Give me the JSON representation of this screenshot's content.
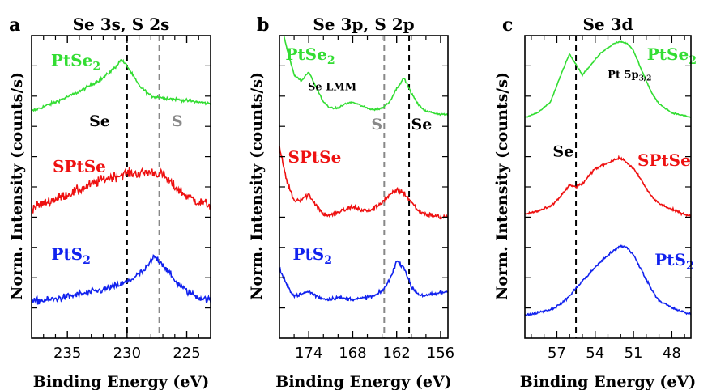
{
  "figure": {
    "ylabel": "Norm. Intensity (counts/s)",
    "xlabel": "Binding Energy (eV)"
  },
  "chart_data": [
    {
      "type": "line",
      "panel_letter": "a",
      "title": "Se 3s, S 2s",
      "xlabel": "Binding Energy (eV)",
      "ylabel": "Norm. Intensity (counts/s)",
      "xlim": [
        238,
        223
      ],
      "x_reversed": true,
      "xticks": [
        235,
        230,
        225
      ],
      "minor_xticks": [
        237,
        236,
        234,
        233,
        232,
        231,
        229,
        228,
        227,
        226,
        224
      ],
      "ylim": [
        0,
        10
      ],
      "y_minor_ticks": 9,
      "reference_lines": [
        {
          "x": 230.0,
          "label": "Se",
          "label_x": 232.3,
          "label_y": 7.0,
          "color": "#000000"
        },
        {
          "x": 227.3,
          "label": "S",
          "label_x": 225.8,
          "label_y": 7.0,
          "color": "#888888"
        }
      ],
      "series": [
        {
          "name": "PtSe₂",
          "name_base": "PtSe",
          "name_sub": "2",
          "color": "#33dd33",
          "label_x": 234.3,
          "label_y": 9.0,
          "noise": 0.05,
          "x": [
            238,
            236,
            234,
            232,
            231,
            230.5,
            230,
            229,
            228,
            227,
            226,
            225,
            224,
            223
          ],
          "y": [
            7.5,
            7.8,
            8.15,
            8.6,
            8.95,
            9.2,
            9.0,
            8.35,
            8.0,
            7.95,
            7.9,
            7.85,
            7.8,
            7.75
          ]
        },
        {
          "name": "SPtSe",
          "color": "#ee1111",
          "label_x": 234.0,
          "label_y": 5.5,
          "noise": 0.16,
          "x": [
            238,
            236,
            234,
            232,
            230,
            229,
            228,
            227,
            226,
            225,
            224,
            223
          ],
          "y": [
            4.3,
            4.6,
            4.9,
            5.25,
            5.45,
            5.45,
            5.5,
            5.4,
            5.0,
            4.7,
            4.5,
            4.4
          ]
        },
        {
          "name": "PtS₂",
          "name_base": "PtS",
          "name_sub": "2",
          "color": "#1122ee",
          "label_x": 234.7,
          "label_y": 2.6,
          "noise": 0.11,
          "x": [
            238,
            236,
            234,
            232,
            230,
            228.5,
            227.7,
            227,
            226,
            225,
            224,
            223
          ],
          "y": [
            1.2,
            1.3,
            1.45,
            1.6,
            1.85,
            2.25,
            2.7,
            2.45,
            1.9,
            1.55,
            1.35,
            1.25
          ]
        }
      ]
    },
    {
      "type": "line",
      "panel_letter": "b",
      "title": "Se 3p, S 2p",
      "xlabel": "Binding Energy (eV)",
      "ylabel": "Norm. Intensity (counts/s)",
      "xlim": [
        178,
        155
      ],
      "x_reversed": true,
      "xticks": [
        174,
        168,
        162,
        156
      ],
      "minor_xticks": [
        176,
        172,
        170,
        166,
        164,
        160,
        158
      ],
      "ylim": [
        0,
        10
      ],
      "y_minor_ticks": 9,
      "reference_lines": [
        {
          "x": 163.7,
          "label": "S",
          "label_x": 164.7,
          "label_y": 6.9,
          "color": "#888888"
        },
        {
          "x": 160.3,
          "label": "Se",
          "label_x": 158.6,
          "label_y": 6.9,
          "color": "#000000"
        }
      ],
      "annotations": [
        {
          "text": "Se LMM",
          "x": 170.8,
          "y": 8.2,
          "size": 13
        }
      ],
      "series": [
        {
          "name": "PtSe₂",
          "name_base": "PtSe",
          "name_sub": "2",
          "color": "#33dd33",
          "label_x": 173.8,
          "label_y": 9.2,
          "noise": 0.03,
          "x": [
            178,
            177,
            176,
            175,
            174,
            173,
            172,
            171,
            170,
            169,
            168,
            167,
            166,
            165,
            164,
            163,
            162,
            161,
            160,
            159,
            158,
            157,
            156,
            155
          ],
          "y": [
            10.6,
            9.6,
            8.7,
            8.5,
            8.8,
            8.3,
            7.8,
            7.6,
            7.6,
            7.75,
            7.8,
            7.7,
            7.6,
            7.55,
            7.6,
            7.8,
            8.25,
            8.6,
            8.1,
            7.7,
            7.5,
            7.45,
            7.4,
            7.4
          ]
        },
        {
          "name": "SPtSe",
          "color": "#ee1111",
          "label_x": 173.2,
          "label_y": 5.8,
          "noise": 0.08,
          "x": [
            178,
            177,
            176,
            175,
            174,
            173,
            172,
            171,
            170,
            169,
            168,
            167,
            166,
            165,
            164,
            163,
            162,
            161,
            160,
            159,
            158,
            157,
            156,
            155
          ],
          "y": [
            6.3,
            5.2,
            4.55,
            4.6,
            4.75,
            4.4,
            4.1,
            4.05,
            4.15,
            4.25,
            4.35,
            4.25,
            4.2,
            4.3,
            4.5,
            4.7,
            4.9,
            4.8,
            4.5,
            4.2,
            4.1,
            4.05,
            4.0,
            4.0
          ]
        },
        {
          "name": "PtS₂",
          "name_base": "PtS",
          "name_sub": "2",
          "color": "#1122ee",
          "label_x": 173.5,
          "label_y": 2.6,
          "noise": 0.06,
          "x": [
            178,
            177,
            176,
            175,
            174,
            173,
            172,
            171,
            170,
            169,
            168,
            167,
            166,
            165,
            164,
            163,
            162,
            161,
            160,
            159,
            158,
            157,
            156,
            155
          ],
          "y": [
            2.3,
            1.75,
            1.4,
            1.45,
            1.55,
            1.4,
            1.3,
            1.3,
            1.35,
            1.3,
            1.3,
            1.3,
            1.35,
            1.4,
            1.55,
            1.9,
            2.55,
            2.35,
            1.7,
            1.45,
            1.4,
            1.45,
            1.5,
            1.55
          ]
        }
      ]
    },
    {
      "type": "line",
      "panel_letter": "c",
      "title": "Se 3d",
      "xlabel": "Binding Energy (eV)",
      "ylabel": "Norm. Intensity (counts/s)",
      "xlim": [
        59.5,
        46.5
      ],
      "x_reversed": true,
      "xticks": [
        57,
        54,
        51,
        48
      ],
      "minor_xticks": [
        59,
        58,
        56,
        55,
        53,
        52,
        50,
        49,
        47
      ],
      "ylim": [
        0,
        10
      ],
      "y_minor_ticks": 9,
      "reference_lines": [
        {
          "x": 55.5,
          "label": "Se",
          "label_x": 56.5,
          "label_y": 6.0,
          "color": "#000000"
        }
      ],
      "annotations": [
        {
          "text": "Pt 5p",
          "sub": "3/2",
          "x": 51.3,
          "y": 8.6,
          "size": 13
        }
      ],
      "series": [
        {
          "name": "PtSe₂",
          "name_base": "PtSe",
          "name_sub": "2",
          "color": "#33dd33",
          "label_x": 48.0,
          "label_y": 9.2,
          "noise": 0.02,
          "x": [
            59.5,
            58.5,
            57.5,
            57,
            56.5,
            56,
            55.5,
            55,
            54.5,
            54,
            53.5,
            53,
            52.5,
            52,
            51.5,
            51,
            50.5,
            50,
            49.5,
            49,
            48,
            47,
            46.5
          ],
          "y": [
            7.3,
            7.45,
            7.8,
            8.35,
            8.9,
            9.4,
            9.05,
            8.7,
            8.95,
            9.2,
            9.45,
            9.6,
            9.75,
            9.8,
            9.75,
            9.5,
            9.0,
            8.5,
            8.05,
            7.75,
            7.45,
            7.35,
            7.3
          ]
        },
        {
          "name": "SPtSe",
          "color": "#ee1111",
          "label_x": 48.6,
          "label_y": 5.7,
          "noise": 0.04,
          "x": [
            59.5,
            58.5,
            57.5,
            57,
            56.5,
            56,
            55.5,
            55,
            54.5,
            54,
            53.5,
            53,
            52.5,
            52,
            51.5,
            51,
            50.5,
            50,
            49.5,
            49,
            48,
            47,
            46.5
          ],
          "y": [
            4.1,
            4.2,
            4.35,
            4.55,
            4.8,
            5.05,
            5.0,
            5.1,
            5.35,
            5.6,
            5.7,
            5.8,
            5.9,
            5.95,
            5.8,
            5.6,
            5.3,
            4.95,
            4.65,
            4.45,
            4.25,
            4.1,
            4.05
          ]
        },
        {
          "name": "PtS₂",
          "name_base": "PtS",
          "name_sub": "2",
          "color": "#1122ee",
          "label_x": 47.8,
          "label_y": 2.4,
          "noise": 0.04,
          "x": [
            59.5,
            58.5,
            57.5,
            57,
            56.5,
            56,
            55.5,
            55,
            54.5,
            54,
            53.5,
            53,
            52.5,
            52,
            51.5,
            51,
            50.5,
            50,
            49.5,
            49,
            48,
            47,
            46.5
          ],
          "y": [
            0.75,
            0.85,
            0.95,
            1.05,
            1.2,
            1.4,
            1.65,
            1.9,
            2.1,
            2.35,
            2.55,
            2.75,
            2.9,
            3.05,
            3.0,
            2.75,
            2.35,
            1.95,
            1.55,
            1.25,
            1.0,
            0.85,
            0.8
          ]
        }
      ]
    }
  ]
}
